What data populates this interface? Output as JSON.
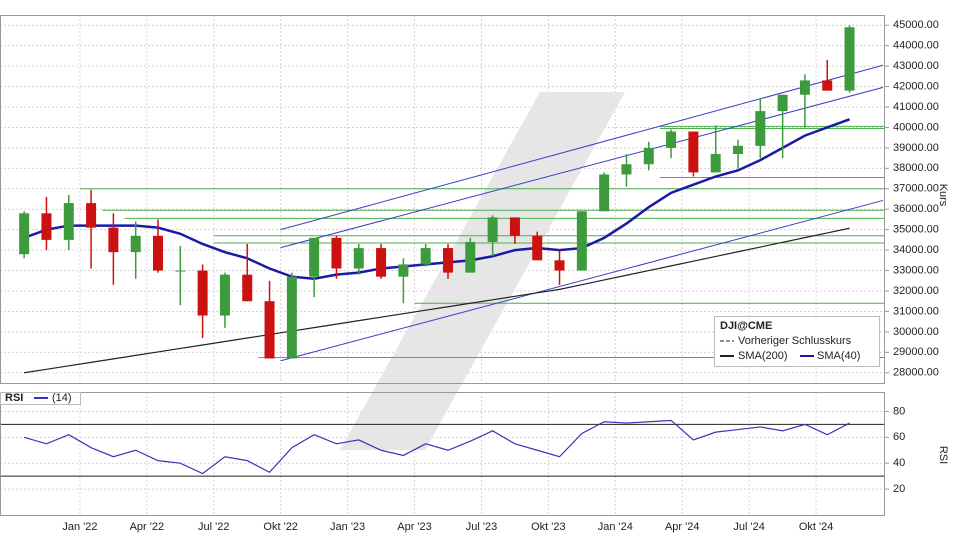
{
  "chart_data": [
    {
      "type": "candlestick",
      "legend_title": "DJI@CME",
      "legend_entries": [
        "Vorheriger Schlusskurs"
      ],
      "ylabel": "Kurs",
      "x": [
        "2021-10",
        "2021-11",
        "2021-12",
        "2022-01",
        "2022-02",
        "2022-03",
        "2022-04",
        "2022-05",
        "2022-06",
        "2022-07",
        "2022-08",
        "2022-09",
        "2022-10",
        "2022-11",
        "2022-12",
        "2023-01",
        "2023-02",
        "2023-03",
        "2023-04",
        "2023-05",
        "2023-06",
        "2023-07",
        "2023-08",
        "2023-09",
        "2023-10",
        "2023-11",
        "2023-12",
        "2024-01",
        "2024-02",
        "2024-03",
        "2024-04",
        "2024-05",
        "2024-06",
        "2024-07",
        "2024-08",
        "2024-09",
        "2024-10",
        "2024-11"
      ],
      "open": [
        33800,
        35800,
        34500,
        36300,
        35100,
        33900,
        34700,
        33000,
        33000,
        30800,
        32800,
        31500,
        28700,
        32700,
        34600,
        33100,
        34100,
        32700,
        33300,
        34100,
        32900,
        34400,
        35600,
        34700,
        33500,
        33000,
        35900,
        37700,
        38200,
        39000,
        39800,
        37800,
        38700,
        39100,
        40800,
        41600,
        42300,
        41800
      ],
      "high": [
        35900,
        36600,
        36700,
        36950,
        35800,
        35400,
        35500,
        34200,
        33300,
        32900,
        34300,
        32500,
        32900,
        34600,
        34700,
        34300,
        34300,
        33600,
        34300,
        34300,
        34600,
        35700,
        35600,
        34900,
        34000,
        35900,
        37800,
        38700,
        39300,
        39900,
        39800,
        40100,
        39400,
        41400,
        41600,
        42600,
        43300,
        45000
      ],
      "low": [
        33600,
        34000,
        34000,
        33100,
        32300,
        32600,
        32900,
        31300,
        29700,
        30200,
        31500,
        28700,
        28700,
        31700,
        32600,
        32800,
        32600,
        31400,
        33200,
        32600,
        32900,
        33700,
        34300,
        33600,
        32300,
        33000,
        35900,
        37100,
        37900,
        38500,
        37600,
        37800,
        38000,
        38500,
        38500,
        40000,
        41800,
        41700
      ],
      "close": [
        35800,
        34500,
        36300,
        35100,
        33900,
        34700,
        33000,
        33000,
        30800,
        32800,
        31500,
        28700,
        32700,
        34600,
        33100,
        34100,
        32700,
        33300,
        34100,
        32900,
        34400,
        35600,
        34700,
        33500,
        33000,
        35900,
        37700,
        38200,
        39000,
        39800,
        37800,
        38700,
        39100,
        40800,
        41600,
        42300,
        41800,
        44900
      ],
      "color_up": "#3d9a3d",
      "color_down": "#cc1111",
      "series": [
        {
          "name": "SMA(200)",
          "color": "#222222",
          "values": [
            28000,
            28170,
            28340,
            28510,
            28680,
            28850,
            29020,
            29190,
            29360,
            29530,
            29700,
            29870,
            30040,
            30210,
            30380,
            30550,
            30720,
            30890,
            31060,
            31230,
            31400,
            31570,
            31740,
            31910,
            32080,
            32310,
            32540,
            32770,
            33000,
            33230,
            33460,
            33690,
            33920,
            34150,
            34380,
            34610,
            34840,
            35070
          ]
        },
        {
          "name": "SMA(40)",
          "color": "#1a1aa6",
          "values": [
            34600,
            35000,
            35200,
            35200,
            35200,
            35200,
            35100,
            34800,
            34300,
            33900,
            33600,
            33100,
            32700,
            32600,
            32800,
            32900,
            33100,
            33200,
            33300,
            33400,
            33500,
            33700,
            34000,
            34100,
            34000,
            34100,
            34600,
            35300,
            36100,
            36800,
            37200,
            37600,
            37900,
            38400,
            39000,
            39600,
            40000,
            40400
          ]
        }
      ],
      "xlim": [
        "2021-10",
        "2025-01"
      ],
      "xticks": [
        {
          "value": "2022-01",
          "label": "Jan '22"
        },
        {
          "value": "2022-04",
          "label": "Apr '22"
        },
        {
          "value": "2022-07",
          "label": "Jul '22"
        },
        {
          "value": "2022-10",
          "label": "Okt '22"
        },
        {
          "value": "2023-01",
          "label": "Jan '23"
        },
        {
          "value": "2023-04",
          "label": "Apr '23"
        },
        {
          "value": "2023-07",
          "label": "Jul '23"
        },
        {
          "value": "2023-10",
          "label": "Okt '23"
        },
        {
          "value": "2024-01",
          "label": "Jan '24"
        },
        {
          "value": "2024-04",
          "label": "Apr '24"
        },
        {
          "value": "2024-07",
          "label": "Jul '24"
        },
        {
          "value": "2024-10",
          "label": "Okt '24"
        }
      ],
      "ylim": [
        27500,
        45500
      ],
      "yticks": [
        {
          "value": 28000,
          "label": "28000.00"
        },
        {
          "value": 29000,
          "label": "29000.00"
        },
        {
          "value": 30000,
          "label": "30000.00"
        },
        {
          "value": 31000,
          "label": "31000.00"
        },
        {
          "value": 32000,
          "label": "32000.00"
        },
        {
          "value": 33000,
          "label": "33000.00"
        },
        {
          "value": 34000,
          "label": "34000.00"
        },
        {
          "value": 35000,
          "label": "35000.00"
        },
        {
          "value": 36000,
          "label": "36000.00"
        },
        {
          "value": 37000,
          "label": "37000.00"
        },
        {
          "value": 38000,
          "label": "38000.00"
        },
        {
          "value": 39000,
          "label": "39000.00"
        },
        {
          "value": 40000,
          "label": "40000.00"
        },
        {
          "value": 41000,
          "label": "41000.00"
        },
        {
          "value": 42000,
          "label": "42000.00"
        },
        {
          "value": 43000,
          "label": "43000.00"
        },
        {
          "value": 44000,
          "label": "44000.00"
        },
        {
          "value": 45000,
          "label": "45000.00"
        }
      ],
      "grid": true,
      "level_color": "#4cae4c",
      "levels": [
        {
          "value": 37000,
          "start": "2022-01"
        },
        {
          "value": 35950,
          "start": "2022-02"
        },
        {
          "value": 35550,
          "start": "2022-03"
        },
        {
          "value": 34700,
          "start": "2022-07"
        },
        {
          "value": 34350,
          "start": "2022-07"
        },
        {
          "value": 31400,
          "start": "2023-04"
        },
        {
          "value": 28750,
          "start": "2022-09"
        },
        {
          "value": 40050,
          "start": "2024-03"
        },
        {
          "value": 39950,
          "start": "2024-03"
        },
        {
          "value": 37550,
          "start": "2024-03"
        }
      ],
      "trendline_color": "#3b3bc4",
      "trendlines": [
        {
          "start": "2022-10",
          "end": "2025-01",
          "from": 35000,
          "to": 43040
        },
        {
          "start": "2022-10",
          "end": "2025-01",
          "from": 34120,
          "to": 41960
        },
        {
          "start": "2022-10",
          "end": "2025-01",
          "from": 28590,
          "to": 36430
        }
      ]
    },
    {
      "type": "line",
      "title": "RSI",
      "ylabel": "RSI",
      "x": [
        "2021-10",
        "2021-11",
        "2021-12",
        "2022-01",
        "2022-02",
        "2022-03",
        "2022-04",
        "2022-05",
        "2022-06",
        "2022-07",
        "2022-08",
        "2022-09",
        "2022-10",
        "2022-11",
        "2022-12",
        "2023-01",
        "2023-02",
        "2023-03",
        "2023-04",
        "2023-05",
        "2023-06",
        "2023-07",
        "2023-08",
        "2023-09",
        "2023-10",
        "2023-11",
        "2023-12",
        "2024-01",
        "2024-02",
        "2024-03",
        "2024-04",
        "2024-05",
        "2024-06",
        "2024-07",
        "2024-08",
        "2024-09",
        "2024-10",
        "2024-11"
      ],
      "series": [
        {
          "name": "(14)",
          "color": "#3535b8",
          "values": [
            60,
            55,
            62,
            52,
            45,
            50,
            42,
            40,
            32,
            45,
            42,
            33,
            52,
            62,
            55,
            58,
            50,
            46,
            55,
            50,
            57,
            65,
            55,
            50,
            45,
            63,
            72,
            71,
            72,
            73,
            58,
            64,
            66,
            68,
            65,
            70,
            62,
            71
          ]
        }
      ],
      "xlim": [
        "2021-10",
        "2025-01"
      ],
      "ylim": [
        0,
        95
      ],
      "yticks": [
        20,
        40,
        60,
        80
      ],
      "levels": [
        70,
        30
      ],
      "grid": true
    }
  ]
}
